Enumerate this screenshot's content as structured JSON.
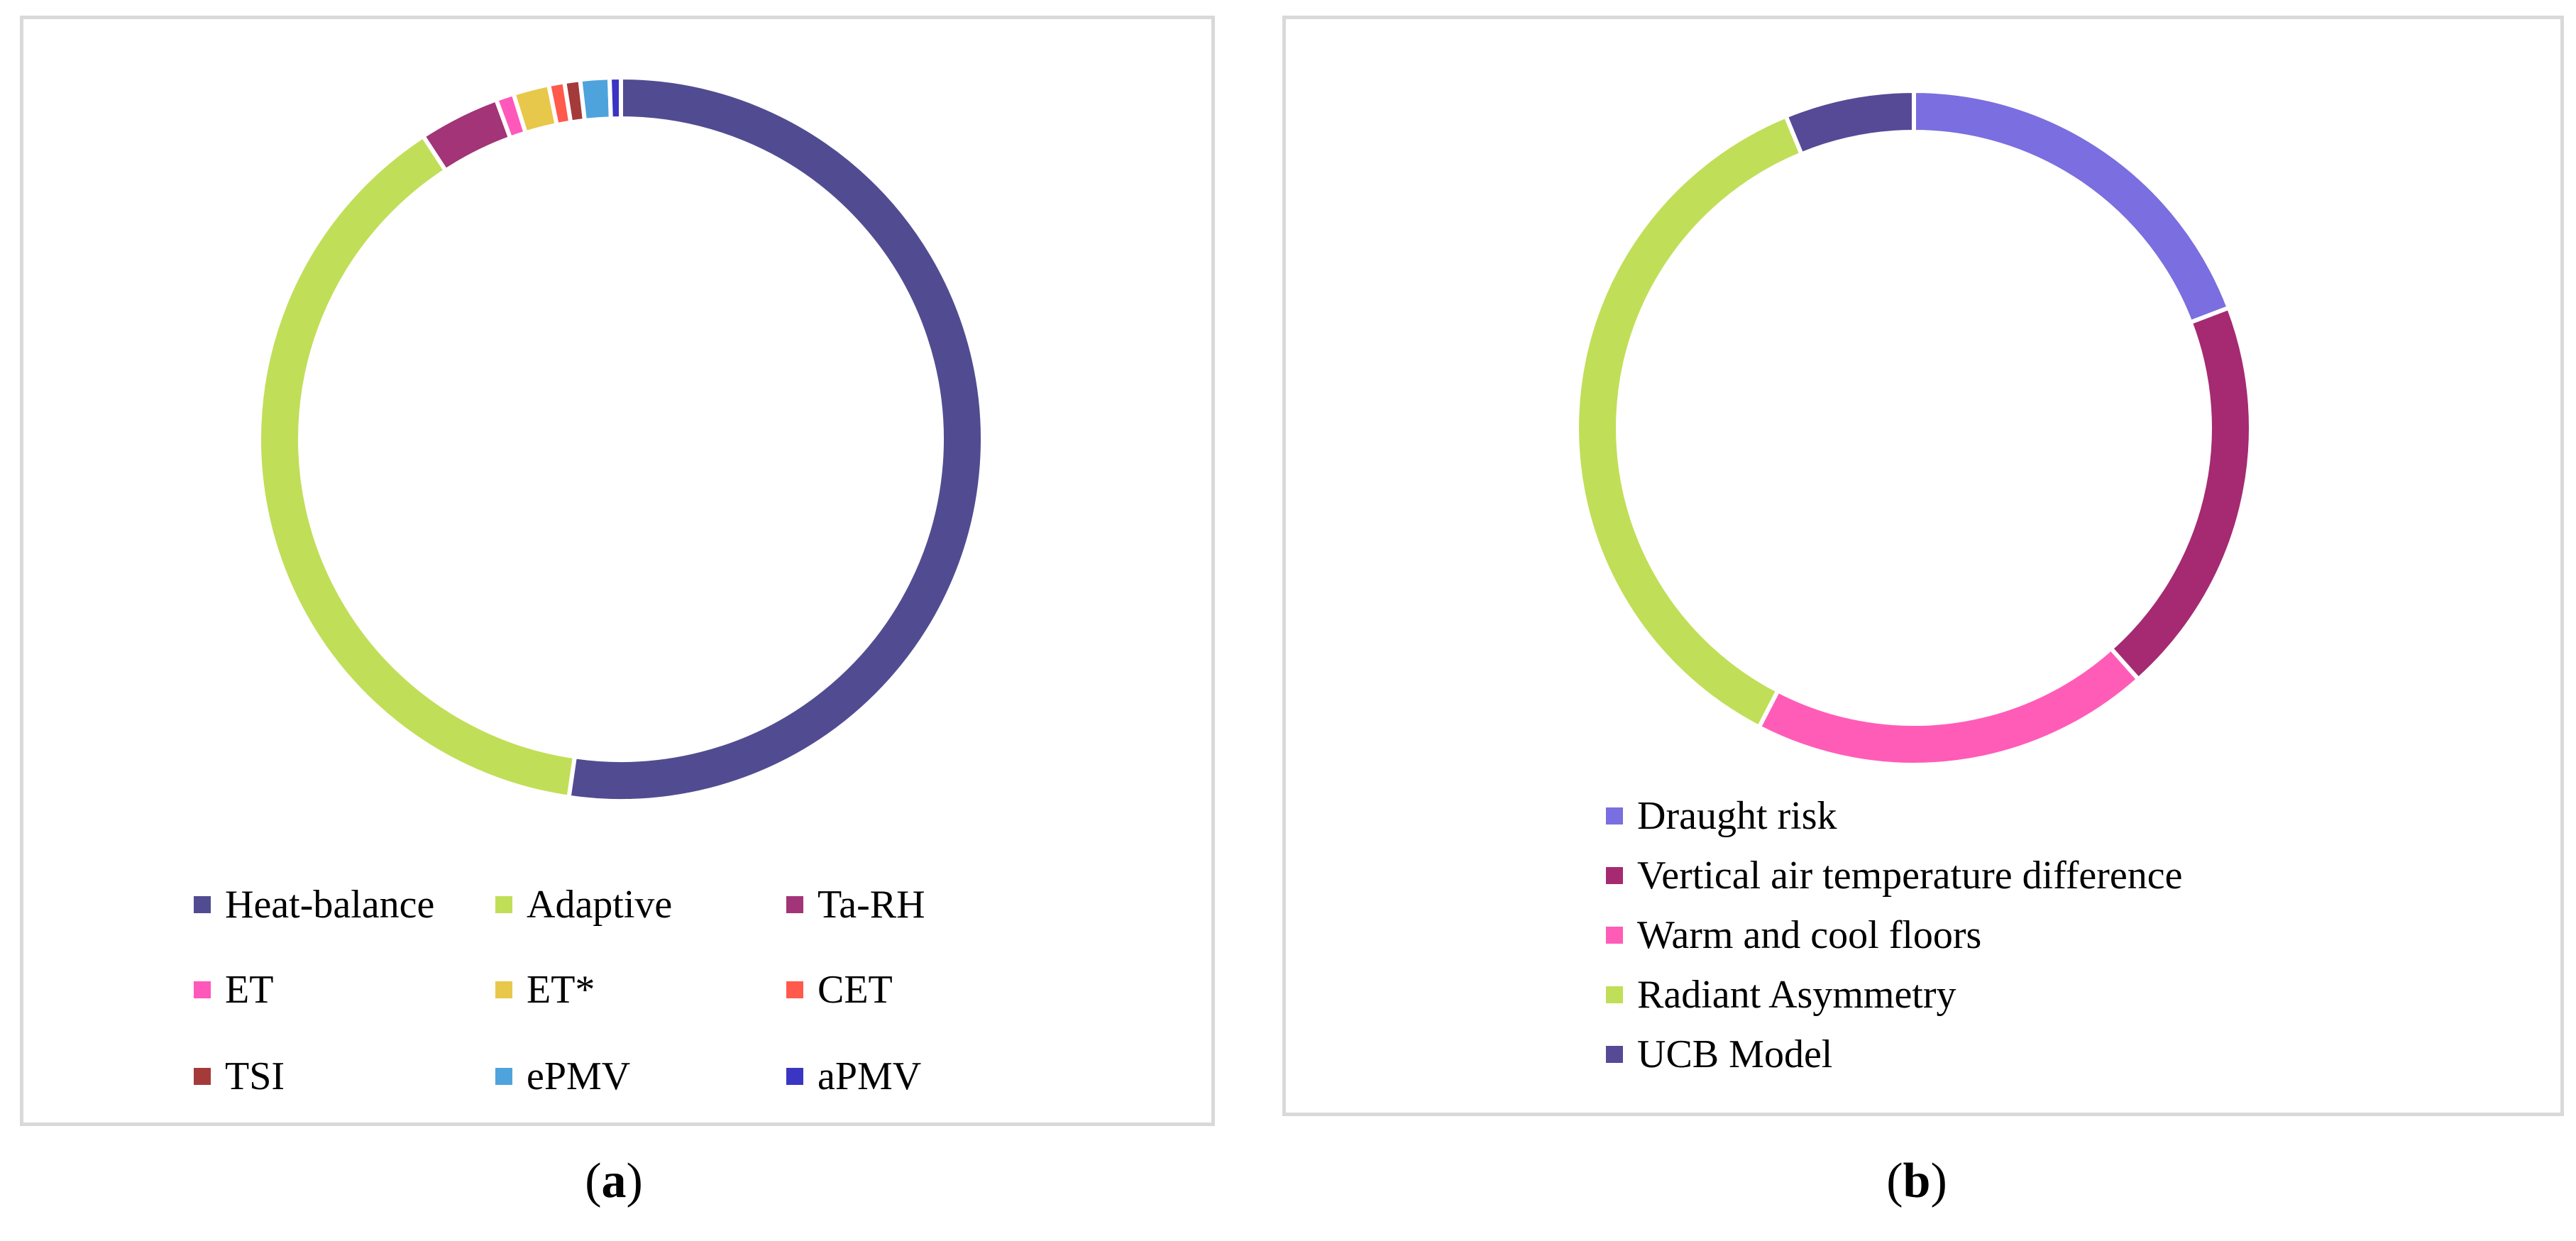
{
  "chart_data": [
    {
      "type": "pie",
      "donut": true,
      "caption_label": "a",
      "legend_position": "bottom",
      "slices": [
        {
          "label": "Heat-balance",
          "value": 52.3,
          "color": "#514C91"
        },
        {
          "label": "Adaptive",
          "value": 38.5,
          "color": "#C1DE58"
        },
        {
          "label": "Ta-RH",
          "value": 3.6,
          "color": "#A23477"
        },
        {
          "label": "ET",
          "value": 0.8,
          "color": "#FF58BB"
        },
        {
          "label": "ET*",
          "value": 1.6,
          "color": "#E7C84A"
        },
        {
          "label": "CET",
          "value": 0.7,
          "color": "#FF5A4C"
        },
        {
          "label": "TSI",
          "value": 0.7,
          "color": "#A53A3A"
        },
        {
          "label": "ePMV",
          "value": 1.3,
          "color": "#4FA3DC"
        },
        {
          "label": "aPMV",
          "value": 0.5,
          "color": "#3A35C2"
        }
      ]
    },
    {
      "type": "pie",
      "donut": true,
      "caption_label": "b",
      "legend_position": "bottom-left",
      "slices": [
        {
          "label": "Draught risk",
          "value": 19.2,
          "color": "#7A6EE0"
        },
        {
          "label": "Vertical air temperature difference",
          "value": 19.2,
          "color": "#A52A72"
        },
        {
          "label": "Warm and cool floors",
          "value": 19.2,
          "color": "#FF5CB8"
        },
        {
          "label": "Radiant Asymmetry",
          "value": 36.2,
          "color": "#C1DE58"
        },
        {
          "label": "UCB Model",
          "value": 6.2,
          "color": "#564A96"
        }
      ]
    }
  ],
  "captions": [
    {
      "open": "(",
      "label": "a",
      "close": ")"
    },
    {
      "open": "(",
      "label": "b",
      "close": ")"
    }
  ]
}
